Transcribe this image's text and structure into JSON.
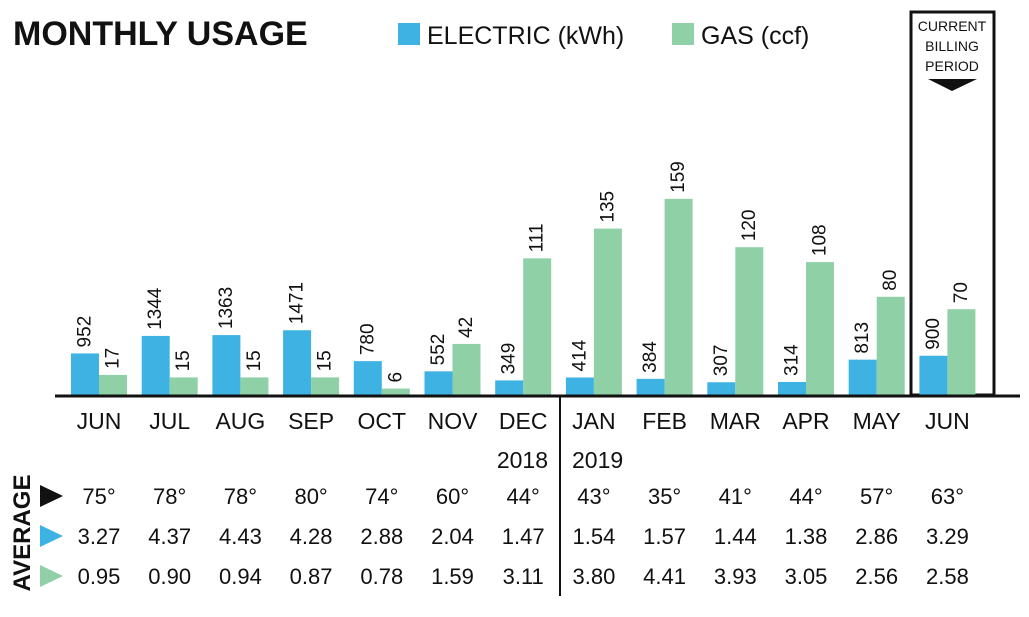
{
  "chart_data": {
    "type": "bar",
    "title": "MONTHLY USAGE",
    "categories": [
      "JUN",
      "JUL",
      "AUG",
      "SEP",
      "OCT",
      "NOV",
      "DEC",
      "JAN",
      "FEB",
      "MAR",
      "APR",
      "MAY",
      "JUN"
    ],
    "years": {
      "left": "2018",
      "right": "2019"
    },
    "series": [
      {
        "name": "ELECTRIC (kWh)",
        "color": "#3fb2e4",
        "values": [
          952,
          1344,
          1363,
          1471,
          780,
          552,
          349,
          414,
          384,
          307,
          314,
          813,
          900
        ]
      },
      {
        "name": "GAS (ccf)",
        "color": "#8fd0a7",
        "values": [
          17,
          15,
          15,
          15,
          6,
          42,
          111,
          135,
          159,
          120,
          108,
          80,
          70
        ]
      }
    ],
    "current_period_label": [
      "CURRENT",
      "BILLING",
      "PERIOD"
    ],
    "average_label": "AVERAGE",
    "averages": [
      {
        "name": "temperature",
        "marker_color": "#111111",
        "values": [
          "75°",
          "78°",
          "78°",
          "80°",
          "74°",
          "60°",
          "44°",
          "43°",
          "35°",
          "41°",
          "44°",
          "57°",
          "63°"
        ]
      },
      {
        "name": "electric",
        "marker_color": "#3fb2e4",
        "values": [
          "3.27",
          "4.37",
          "4.43",
          "4.28",
          "2.88",
          "2.04",
          "1.47",
          "1.54",
          "1.57",
          "1.44",
          "1.38",
          "2.86",
          "3.29"
        ]
      },
      {
        "name": "gas",
        "marker_color": "#8fd0a7",
        "values": [
          "0.95",
          "0.90",
          "0.94",
          "0.87",
          "0.78",
          "1.59",
          "3.11",
          "3.80",
          "4.41",
          "3.93",
          "3.05",
          "2.56",
          "2.58"
        ]
      }
    ]
  }
}
